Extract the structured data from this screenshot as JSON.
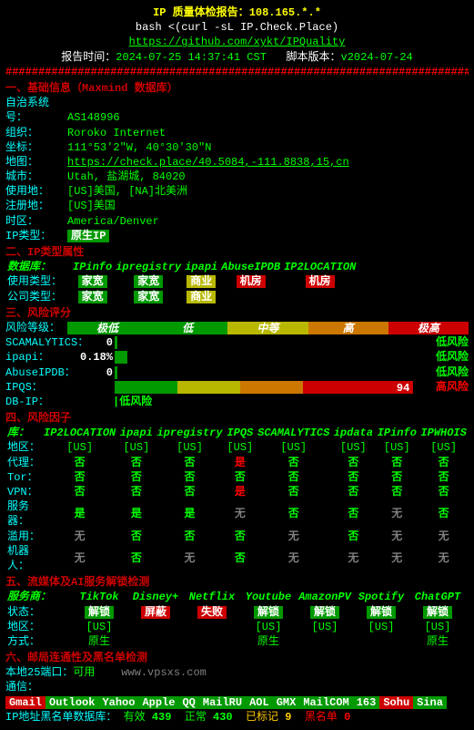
{
  "header": {
    "title_prefix": "IP 质量体检报告：",
    "ip": "108.165.*.*",
    "sub": "bash <(curl -sL IP.Check.Place)",
    "url": "https://github.com/xykt/IPQuality",
    "time_label": "报告时间：",
    "time_value": "2024-07-25 14:37:41 CST",
    "ver_label": "脚本版本：",
    "ver_value": "v2024-07-24"
  },
  "s1": {
    "title": "一、基础信息（Maxmind 数据库）",
    "asn_l": "自治系统号：",
    "asn_v": "AS148996",
    "org_l": "组织：",
    "org_v": "Roroko Internet",
    "crd_l": "坐标：",
    "crd_v": "111°53'2\"W, 40°30'30\"N",
    "map_l": "地图：",
    "map_v": "https://check.place/40.5084,-111.8838,15,cn",
    "cty_l": "城市：",
    "cty_v": "Utah, 盐湖城, 84020",
    "use_l": "使用地：",
    "use_v": "[US]美国, [NA]北美洲",
    "reg_l": "注册地：",
    "reg_v": "[US]美国",
    "tz_l": "时区：",
    "tz_v": "America/Denver",
    "typ_l": "IP类型：",
    "typ_v": "原生IP"
  },
  "s2": {
    "title": "二、IP类型属性",
    "db_l": "数据库：",
    "cols": [
      "IPinfo",
      "ipregistry",
      "ipapi",
      "AbuseIPDB",
      "IP2LOCATION"
    ],
    "use_l": "使用类型：",
    "use_v": [
      "家宽",
      "家宽",
      "商业",
      "机房",
      "机房"
    ],
    "co_l": "公司类型：",
    "co_v": [
      "家宽",
      "家宽",
      "商业",
      "",
      ""
    ]
  },
  "s3": {
    "title": "三、风险评分",
    "lvl_l": "风险等级：",
    "lvls": [
      "极低",
      "低",
      "中等",
      "高",
      "极高"
    ],
    "rows": [
      {
        "name": "SCAMALYTICS：",
        "score": "0",
        "label": "低风险",
        "pct": 1
      },
      {
        "name": "ipapi：",
        "score": "0.18%",
        "label": "低风险",
        "pct": 4
      },
      {
        "name": "AbuseIPDB：",
        "score": "0",
        "label": "低风险",
        "pct": 1
      },
      {
        "name": "IPQS：",
        "score": "94",
        "label": "高风险",
        "pct": 94,
        "hi": true
      },
      {
        "name": "DB-IP：",
        "score": "",
        "label": "低风险",
        "pct": 0
      }
    ]
  },
  "s4": {
    "title": "四、风险因子",
    "lib_l": "库：",
    "cols": [
      "IP2LOCATION",
      "ipapi",
      "ipregistry",
      "IPQS",
      "SCAMALYTICS",
      "ipdata",
      "IPinfo",
      "IPWHOIS"
    ],
    "rgn_l": "地区：",
    "rgn_v": [
      "[US]",
      "[US]",
      "[US]",
      "[US]",
      "[US]",
      "[US]",
      "[US]",
      "[US]"
    ],
    "rows": [
      {
        "l": "代理：",
        "v": [
          "否",
          "否",
          "否",
          "是",
          "否",
          "否",
          "否",
          "否"
        ],
        "red": [
          3
        ]
      },
      {
        "l": "Tor：",
        "v": [
          "否",
          "否",
          "否",
          "否",
          "否",
          "否",
          "否",
          "否"
        ],
        "red": []
      },
      {
        "l": "VPN：",
        "v": [
          "否",
          "否",
          "否",
          "是",
          "否",
          "否",
          "否",
          "否"
        ],
        "red": [
          3
        ]
      },
      {
        "l": "服务器：",
        "v": [
          "是",
          "是",
          "是",
          "无",
          "否",
          "否",
          "无",
          "否"
        ],
        "grn": [
          0,
          1,
          2
        ],
        "gray": [
          3,
          6
        ]
      },
      {
        "l": "滥用：",
        "v": [
          "无",
          "否",
          "否",
          "否",
          "无",
          "否",
          "无",
          "无"
        ],
        "gray": [
          0,
          4,
          6,
          7
        ]
      },
      {
        "l": "机器人：",
        "v": [
          "无",
          "否",
          "无",
          "否",
          "无",
          "无",
          "无",
          "无"
        ],
        "gray": [
          0,
          2,
          4,
          5,
          6,
          7
        ]
      }
    ]
  },
  "s5": {
    "title": "五、流媒体及AI服务解锁检测",
    "svc_l": "服务商：",
    "cols": [
      "TikTok",
      "Disney+",
      "Netflix",
      "Youtube",
      "AmazonPV",
      "Spotify",
      "ChatGPT"
    ],
    "st_l": "状态：",
    "st_v": [
      {
        "t": "解锁",
        "c": "bg-g"
      },
      {
        "t": "屏蔽",
        "c": "bg-r"
      },
      {
        "t": "失败",
        "c": "bg-r"
      },
      {
        "t": "解锁",
        "c": "bg-g"
      },
      {
        "t": "解锁",
        "c": "bg-g"
      },
      {
        "t": "解锁",
        "c": "bg-g"
      },
      {
        "t": "解锁",
        "c": "bg-g"
      }
    ],
    "rg_l": "地区：",
    "rg_v": [
      "[US]",
      "",
      "",
      "[US]",
      "[US]",
      "[US]",
      "[US]"
    ],
    "md_l": "方式：",
    "md_v": [
      "原生",
      "",
      "",
      "原生",
      "",
      "",
      "原生"
    ]
  },
  "s6": {
    "title": "六、邮局连通性及黑名单检测",
    "p25_l": "本地25端口：",
    "p25_v": "可用",
    "wm": "www.vpsxs.com",
    "com_l": "通信：",
    "mails": [
      "Gmail",
      "Outlook",
      "Yahoo",
      "Apple",
      "QQ",
      "MailRU",
      "AOL",
      "GMX",
      "MailCOM",
      "163",
      "Sohu",
      "Sina"
    ],
    "mail_c": [
      "bg-r",
      "bg-g",
      "bg-g",
      "bg-g",
      "bg-g",
      "bg-g",
      "bg-g",
      "bg-g",
      "bg-g",
      "bg-g",
      "bg-r",
      "bg-g"
    ],
    "bl_l": "IP地址黑名单数据库：",
    "bl": [
      {
        "l": "有效",
        "v": "439",
        "c": "g"
      },
      {
        "l": "正常",
        "v": "430",
        "c": "g"
      },
      {
        "l": "已标记",
        "v": "9",
        "c": "yl"
      },
      {
        "l": "黑名单",
        "v": "0",
        "c": "r"
      }
    ]
  }
}
